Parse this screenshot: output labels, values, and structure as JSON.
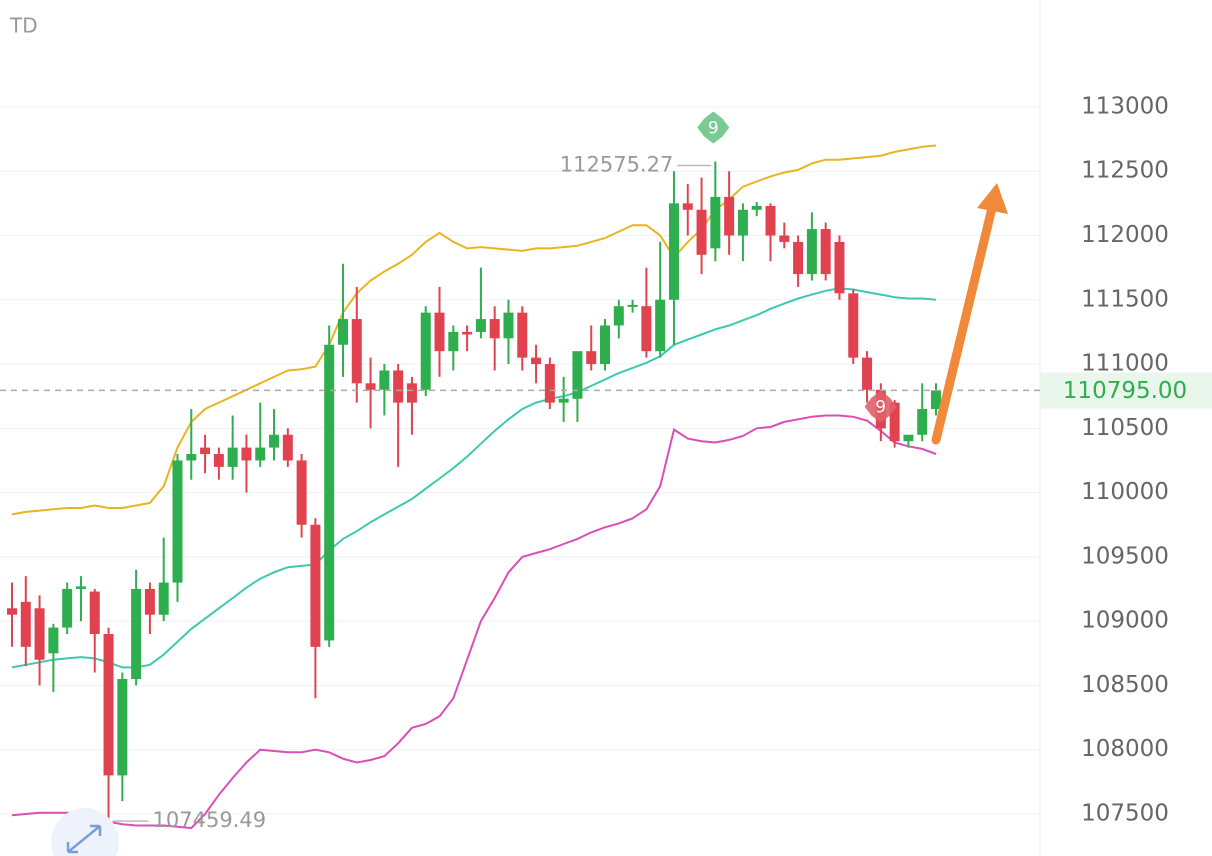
{
  "chart_data": {
    "type": "candlestick",
    "indicator": "TD",
    "open": [
      109100,
      109150,
      109100,
      108750,
      108950,
      109250,
      109230,
      108900,
      107800,
      108550,
      109250,
      109050,
      109300,
      110250,
      110350,
      110300,
      110200,
      110350,
      110250,
      110350,
      110450,
      110250,
      109750,
      108850,
      111150,
      111350,
      110850,
      110800,
      110950,
      110850,
      110800,
      111400,
      111100,
      111250,
      111250,
      111350,
      111200,
      111400,
      111050,
      111000,
      110700,
      110730,
      111100,
      111000,
      111300,
      111450,
      111450,
      111100,
      111500,
      112250,
      112200,
      111900,
      112300,
      112000,
      112200,
      112230,
      112000,
      111950,
      111700,
      112050,
      111950,
      111550,
      111050,
      110800,
      110700,
      110400,
      110450,
      110650
    ],
    "high": [
      109300,
      109350,
      109200,
      108980,
      109300,
      109350,
      109250,
      108950,
      108600,
      109400,
      109300,
      109650,
      110300,
      110650,
      110450,
      110350,
      110600,
      110450,
      110700,
      110650,
      110500,
      110300,
      109800,
      111300,
      111780,
      111600,
      111050,
      111000,
      111000,
      110900,
      111450,
      111600,
      111300,
      111300,
      111750,
      111450,
      111500,
      111450,
      111150,
      111050,
      110900,
      111100,
      111300,
      111350,
      111500,
      111500,
      111750,
      111950,
      112500,
      112400,
      112450,
      112575.27,
      112500,
      112250,
      112260,
      112250,
      112100,
      112000,
      112180,
      112100,
      112000,
      111580,
      111100,
      110850,
      110720,
      110450,
      110850,
      110850
    ],
    "low": [
      108800,
      108650,
      108500,
      108450,
      108900,
      109000,
      108600,
      107459.49,
      107600,
      108500,
      108900,
      109000,
      109150,
      110100,
      110150,
      110100,
      110100,
      110000,
      110200,
      110250,
      110200,
      109650,
      108400,
      108800,
      110900,
      110700,
      110500,
      110600,
      110200,
      110450,
      110750,
      110900,
      110950,
      111100,
      111200,
      110950,
      111000,
      110950,
      110850,
      110650,
      110550,
      110550,
      110950,
      110950,
      111200,
      111400,
      111050,
      111050,
      111150,
      112000,
      111700,
      111800,
      111850,
      111800,
      112150,
      111800,
      111900,
      111600,
      111650,
      111650,
      111500,
      111000,
      110700,
      110400,
      110350,
      110350,
      110400,
      110600
    ],
    "close": [
      109050,
      108800,
      108700,
      108950,
      109250,
      109270,
      108900,
      107800,
      108550,
      109250,
      109050,
      109300,
      110250,
      110300,
      110300,
      110200,
      110350,
      110250,
      110350,
      110450,
      110250,
      109750,
      108800,
      111150,
      111350,
      110850,
      110800,
      110950,
      110700,
      110700,
      111400,
      111100,
      111250,
      111230,
      111350,
      111200,
      111400,
      111050,
      111000,
      110700,
      110730,
      111100,
      111000,
      111300,
      111450,
      111460,
      111100,
      111500,
      112250,
      112200,
      111850,
      112300,
      112000,
      112200,
      112230,
      112000,
      111950,
      111700,
      112050,
      111700,
      111550,
      111050,
      110800,
      110500,
      110400,
      110450,
      110650,
      110795
    ],
    "up_color": "#2eae4e",
    "down_color": "#e0434f",
    "bands": [
      {
        "color": "#e8b420",
        "values": [
          109830,
          109850,
          109860,
          109870,
          109880,
          109880,
          109900,
          109880,
          109880,
          109900,
          109920,
          110050,
          110350,
          110550,
          110650,
          110700,
          110750,
          110800,
          110850,
          110900,
          110950,
          110960,
          110980,
          111150,
          111400,
          111550,
          111650,
          111720,
          111780,
          111850,
          111950,
          112020,
          111950,
          111900,
          111910,
          111900,
          111890,
          111880,
          111900,
          111900,
          111910,
          111920,
          111950,
          111980,
          112030,
          112080,
          112080,
          112000,
          111830,
          111950,
          112050,
          112200,
          112280,
          112380,
          112420,
          112460,
          112490,
          112510,
          112560,
          112590,
          112590,
          112600,
          112610,
          112620,
          112650,
          112670,
          112690,
          112700
        ]
      },
      {
        "color": "#3cc9b0",
        "values": [
          108640,
          108660,
          108680,
          108700,
          108710,
          108720,
          108710,
          108680,
          108640,
          108640,
          108660,
          108740,
          108840,
          108940,
          109020,
          109100,
          109180,
          109260,
          109330,
          109380,
          109420,
          109430,
          109440,
          109550,
          109640,
          109700,
          109770,
          109830,
          109890,
          109950,
          110030,
          110110,
          110190,
          110280,
          110380,
          110480,
          110570,
          110650,
          110700,
          110730,
          110750,
          110780,
          110830,
          110880,
          110930,
          110970,
          111010,
          111060,
          111150,
          111190,
          111230,
          111270,
          111300,
          111340,
          111380,
          111430,
          111470,
          111510,
          111540,
          111570,
          111590,
          111580,
          111560,
          111540,
          111520,
          111510,
          111510,
          111500
        ]
      },
      {
        "color": "#d94fb5",
        "values": [
          107490,
          107500,
          107510,
          107510,
          107510,
          107500,
          107500,
          107440,
          107420,
          107410,
          107410,
          107410,
          107400,
          107390,
          107500,
          107650,
          107780,
          107900,
          108000,
          107990,
          107980,
          107980,
          108000,
          107980,
          107930,
          107900,
          107920,
          107950,
          108050,
          108170,
          108200,
          108260,
          108400,
          108700,
          109000,
          109180,
          109380,
          109500,
          109530,
          109560,
          109600,
          109640,
          109690,
          109730,
          109760,
          109800,
          109870,
          110050,
          110490,
          110420,
          110400,
          110390,
          110410,
          110440,
          110500,
          110510,
          110550,
          110570,
          110590,
          110600,
          110600,
          110590,
          110560,
          110480,
          110390,
          110360,
          110340,
          110300
        ]
      }
    ],
    "td_marks": [
      {
        "index": 51,
        "label": "9",
        "color": "#6cc48a"
      },
      {
        "index": 64,
        "label": "9",
        "color": "#e0606a"
      }
    ],
    "last_price": {
      "value": 110795,
      "label": "110795.00"
    },
    "ylim": [
      107173,
      113832
    ],
    "yticks": [
      107500,
      108000,
      108500,
      109000,
      109500,
      110000,
      110500,
      111000,
      111500,
      112000,
      112500,
      113000
    ],
    "grid": true
  }
}
